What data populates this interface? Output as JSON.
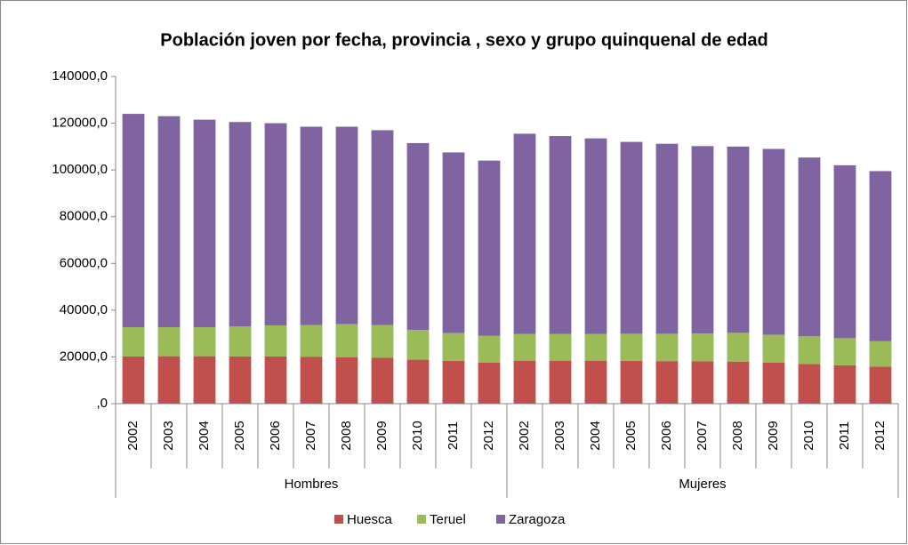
{
  "chart_data": {
    "type": "stacked_bar",
    "title": "Población joven por fecha, provincia , sexo y grupo quinquenal de edad",
    "category_groups": [
      {
        "name": "Hombres",
        "categories": [
          "2002",
          "2003",
          "2004",
          "2005",
          "2006",
          "2007",
          "2008",
          "2009",
          "2010",
          "2011",
          "2012"
        ]
      },
      {
        "name": "Mujeres",
        "categories": [
          "2002",
          "2003",
          "2004",
          "2005",
          "2006",
          "2007",
          "2008",
          "2009",
          "2010",
          "2011",
          "2012"
        ]
      }
    ],
    "series": [
      {
        "name": "Huesca",
        "color": "#c0504d",
        "values": [
          20200,
          20300,
          20300,
          20200,
          20200,
          20100,
          19900,
          19600,
          18800,
          18300,
          17600,
          18400,
          18400,
          18400,
          18300,
          18200,
          18100,
          18000,
          17600,
          17000,
          16400,
          15800
        ]
      },
      {
        "name": "Teruel",
        "color": "#9bbb59",
        "values": [
          12500,
          12400,
          12400,
          12800,
          13300,
          13500,
          14100,
          14000,
          12700,
          11900,
          11400,
          11400,
          11400,
          11400,
          11600,
          11700,
          11900,
          12300,
          11900,
          11800,
          11600,
          10900
        ]
      },
      {
        "name": "Zaragoza",
        "color": "#8064a2",
        "values": [
          91300,
          90300,
          88800,
          87500,
          86500,
          84900,
          84500,
          83400,
          80000,
          77300,
          75000,
          85700,
          84700,
          83700,
          82100,
          81300,
          80200,
          79700,
          79500,
          76500,
          74000,
          72800
        ]
      }
    ],
    "ylim": [
      0,
      140000
    ],
    "yticks": [
      {
        "value": 0,
        "label": ",0"
      },
      {
        "value": 20000,
        "label": "20000,0"
      },
      {
        "value": 40000,
        "label": "40000,0"
      },
      {
        "value": 60000,
        "label": "60000,0"
      },
      {
        "value": 80000,
        "label": "80000,0"
      },
      {
        "value": 100000,
        "label": "100000,0"
      },
      {
        "value": 120000,
        "label": "120000,0"
      },
      {
        "value": 140000,
        "label": "140000,0"
      }
    ],
    "legend": "bottom"
  }
}
